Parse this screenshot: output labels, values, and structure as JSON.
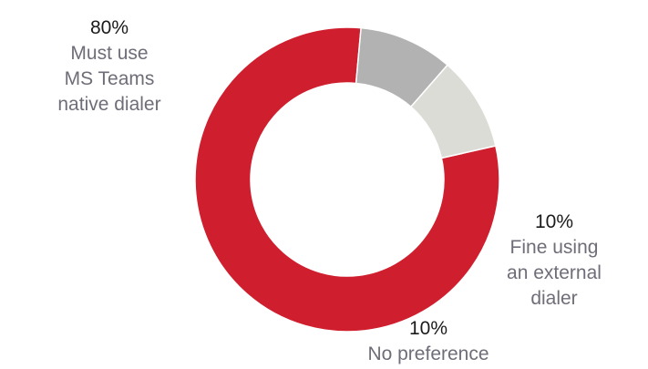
{
  "chart_data": {
    "type": "pie",
    "variant": "donut",
    "title": "",
    "slices": [
      {
        "percent_label": "80%",
        "label_lines": [
          "Must use",
          "MS Teams",
          "native dialer"
        ],
        "value": 80,
        "color": "#cf1f2e"
      },
      {
        "percent_label": "10%",
        "label_lines": [
          "Fine using",
          "an external",
          "dialer"
        ],
        "value": 10,
        "color": "#b2b2b2"
      },
      {
        "percent_label": "10%",
        "label_lines": [
          "No preference"
        ],
        "value": 10,
        "color": "#dcdcd7"
      }
    ]
  }
}
